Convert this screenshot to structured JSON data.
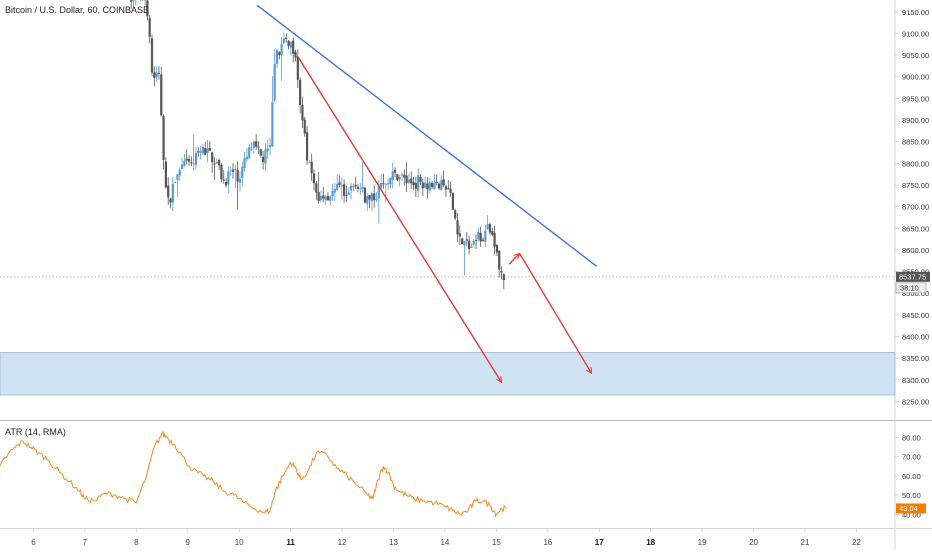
{
  "colors": {
    "candle_up": "#5b9bd5",
    "candle_down": "#555555",
    "trendline": "#3c78d8",
    "arrow": "#e53935",
    "zone_fill": "#cfe2f3",
    "zone_stroke": "#9fb8cc",
    "atr_line": "#f28c28",
    "atr_badge": "#f57c00",
    "price_badge": "#555555",
    "axis_text": "#333333"
  },
  "chart_data": [
    {
      "type": "candlestick",
      "title": "Bitcoin / U.S. Dollar, 60, COINBASE",
      "x_tick_labels": [
        "6",
        "7",
        "8",
        "9",
        "10",
        "11",
        "12",
        "13",
        "14",
        "15",
        "16",
        "17",
        "18",
        "19",
        "20",
        "21",
        "22"
      ],
      "bold_x_ticks": [
        "11",
        "17",
        "18"
      ],
      "x_range": [
        5.35,
        22.75
      ],
      "y_ticks": [
        8250,
        8300,
        8350,
        8400,
        8450,
        8500,
        8550,
        8600,
        8650,
        8700,
        8750,
        8800,
        8850,
        8900,
        8950,
        9000,
        9050,
        9100,
        9150
      ],
      "y_range": [
        8221,
        9161
      ],
      "current_price": 8537.75,
      "current_price_label": "8537.75",
      "countdown_label": "38:10",
      "price_path": [
        {
          "x": 7.9,
          "y": 9190
        },
        {
          "x": 8.2,
          "y": 9180
        },
        {
          "x": 8.3,
          "y": 9010
        },
        {
          "x": 8.45,
          "y": 8990
        },
        {
          "x": 8.55,
          "y": 8780
        },
        {
          "x": 8.6,
          "y": 8700
        },
        {
          "x": 8.75,
          "y": 8760
        },
        {
          "x": 8.9,
          "y": 8790
        },
        {
          "x": 9.1,
          "y": 8800
        },
        {
          "x": 9.3,
          "y": 8830
        },
        {
          "x": 9.5,
          "y": 8815
        },
        {
          "x": 9.7,
          "y": 8760
        },
        {
          "x": 9.85,
          "y": 8780
        },
        {
          "x": 10.0,
          "y": 8770
        },
        {
          "x": 10.25,
          "y": 8840
        },
        {
          "x": 10.45,
          "y": 8810
        },
        {
          "x": 10.6,
          "y": 8830
        },
        {
          "x": 10.7,
          "y": 9060
        },
        {
          "x": 10.85,
          "y": 9070
        },
        {
          "x": 10.95,
          "y": 9085
        },
        {
          "x": 11.1,
          "y": 9060
        },
        {
          "x": 11.2,
          "y": 8920
        },
        {
          "x": 11.3,
          "y": 8830
        },
        {
          "x": 11.4,
          "y": 8770
        },
        {
          "x": 11.55,
          "y": 8720
        },
        {
          "x": 11.75,
          "y": 8730
        },
        {
          "x": 12.0,
          "y": 8740
        },
        {
          "x": 12.3,
          "y": 8745
        },
        {
          "x": 12.55,
          "y": 8710
        },
        {
          "x": 12.7,
          "y": 8735
        },
        {
          "x": 12.85,
          "y": 8765
        },
        {
          "x": 13.1,
          "y": 8775
        },
        {
          "x": 13.3,
          "y": 8755
        },
        {
          "x": 13.55,
          "y": 8760
        },
        {
          "x": 13.8,
          "y": 8750
        },
        {
          "x": 14.05,
          "y": 8740
        },
        {
          "x": 14.15,
          "y": 8700
        },
        {
          "x": 14.3,
          "y": 8620
        },
        {
          "x": 14.5,
          "y": 8605
        },
        {
          "x": 14.65,
          "y": 8630
        },
        {
          "x": 14.85,
          "y": 8645
        },
        {
          "x": 14.98,
          "y": 8620
        },
        {
          "x": 15.05,
          "y": 8550
        },
        {
          "x": 15.15,
          "y": 8537.75
        }
      ],
      "trendline": {
        "from": {
          "x": 10.35,
          "y": 9165
        },
        "to": {
          "x": 16.95,
          "y": 8562
        }
      },
      "projection_arrows": [
        {
          "from": {
            "x": 11.15,
            "y": 9045
          },
          "to": {
            "x": 15.1,
            "y": 8294
          }
        },
        {
          "from": {
            "x": 15.25,
            "y": 8567
          },
          "to": {
            "x": 15.45,
            "y": 8592
          }
        },
        {
          "from": {
            "x": 15.45,
            "y": 8592
          },
          "to": {
            "x": 16.85,
            "y": 8315
          }
        }
      ],
      "support_zone": {
        "y_low": 8265,
        "y_high": 8363
      },
      "grid": false
    },
    {
      "type": "line",
      "title": "ATR (14, RMA)",
      "y_ticks": [
        40,
        50,
        60,
        70,
        80
      ],
      "y_range": [
        36,
        87
      ],
      "current_value": 43.04,
      "current_value_label": "43.04",
      "series": [
        {
          "x": [
            5.35,
            5.5,
            5.65,
            5.8,
            5.95,
            6.1,
            6.3,
            6.5,
            6.7,
            6.9,
            7.0,
            7.2,
            7.4,
            7.6,
            7.8,
            8.0,
            8.2,
            8.35,
            8.5,
            8.6,
            8.75,
            8.9,
            9.1,
            9.3,
            9.5,
            9.7,
            9.9,
            10.1,
            10.3,
            10.5,
            10.6,
            10.65,
            10.7,
            10.85,
            11.0,
            11.1,
            11.2,
            11.35,
            11.5,
            11.7,
            11.9,
            12.1,
            12.3,
            12.5,
            12.6,
            12.7,
            12.8,
            12.9,
            13.0,
            13.1,
            13.25,
            13.4,
            13.6,
            13.8,
            14.0,
            14.15,
            14.3,
            14.45,
            14.6,
            14.75,
            14.9,
            15.0,
            15.1,
            15.2
          ],
          "values": [
            65,
            71,
            75,
            78,
            75,
            72,
            68,
            62,
            57,
            52,
            48,
            47,
            51,
            50,
            48,
            46,
            60,
            75,
            82,
            80,
            76,
            70,
            63,
            60,
            57,
            52,
            50,
            46,
            43,
            41,
            42,
            47,
            52,
            60,
            67,
            64,
            58,
            63,
            72,
            71,
            64,
            60,
            55,
            50,
            48,
            58,
            65,
            62,
            55,
            52,
            50,
            48,
            47,
            46,
            44,
            42,
            40,
            42,
            47,
            47,
            44,
            40,
            43,
            43.04
          ]
        }
      ]
    }
  ]
}
